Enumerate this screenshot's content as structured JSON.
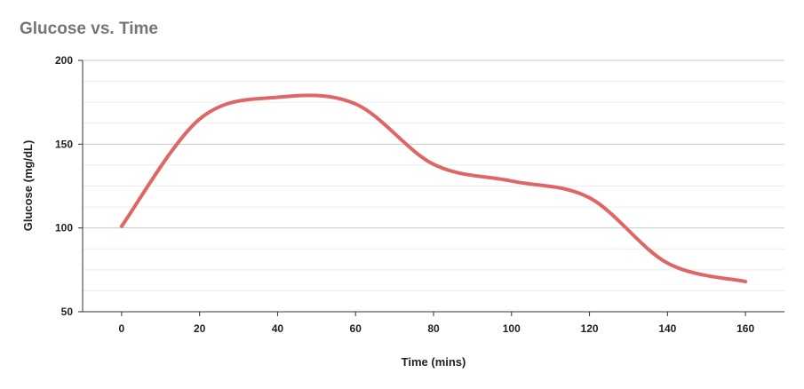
{
  "chart_data": {
    "type": "line",
    "title": "Glucose vs. Time",
    "xlabel": "Time (mins)",
    "ylabel": "Glucose (mg/dL)",
    "xlim": [
      -10,
      170
    ],
    "ylim": [
      50,
      200
    ],
    "x_ticks": [
      0,
      20,
      40,
      60,
      80,
      100,
      120,
      140,
      160
    ],
    "y_ticks": [
      50,
      100,
      150,
      200
    ],
    "grid": true,
    "series": [
      {
        "color": "#e06666",
        "x": [
          0,
          20,
          40,
          60,
          80,
          100,
          120,
          140,
          160
        ],
        "y": [
          101,
          165,
          178,
          174,
          138,
          128,
          118,
          79,
          68
        ]
      }
    ]
  }
}
